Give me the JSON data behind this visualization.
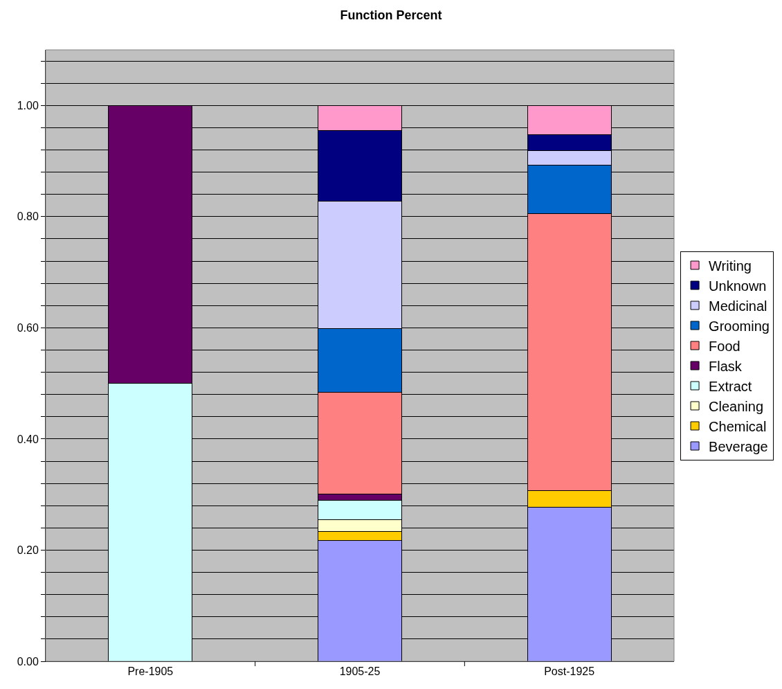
{
  "chart_data": {
    "type": "bar",
    "title": "Function Percent",
    "stacked": true,
    "categories": [
      "Pre-1905",
      "1905-25",
      "Post-1925"
    ],
    "series": [
      {
        "name": "Beverage",
        "color": "#9999ff",
        "values": [
          null,
          0.218,
          0.277
        ]
      },
      {
        "name": "Chemical",
        "color": "#ffcc00",
        "values": [
          null,
          0.015,
          0.03
        ]
      },
      {
        "name": "Cleaning",
        "color": "#ffffcc",
        "values": [
          null,
          0.022,
          null
        ]
      },
      {
        "name": "Extract",
        "color": "#ccffff",
        "values": [
          0.5,
          0.035,
          null
        ]
      },
      {
        "name": "Flask",
        "color": "#660066",
        "values": [
          0.5,
          0.011,
          null
        ]
      },
      {
        "name": "Food",
        "color": "#ff8080",
        "values": [
          null,
          0.183,
          0.499
        ]
      },
      {
        "name": "Grooming",
        "color": "#0066cc",
        "values": [
          null,
          0.114,
          0.086
        ]
      },
      {
        "name": "Medicinal",
        "color": "#ccccff",
        "values": [
          null,
          0.23,
          0.027
        ]
      },
      {
        "name": "Unknown",
        "color": "#000080",
        "values": [
          null,
          0.127,
          0.028
        ]
      },
      {
        "name": "Writing",
        "color": "#ff99cc",
        "values": [
          null,
          0.045,
          0.053
        ]
      }
    ],
    "ylim": [
      0,
      1.1
    ],
    "yticks": [
      {
        "value": 0,
        "label": "0.00"
      },
      {
        "value": 0.04,
        "label": null
      },
      {
        "value": 0.08,
        "label": null
      },
      {
        "value": 0.12,
        "label": null
      },
      {
        "value": 0.16,
        "label": null
      },
      {
        "value": 0.2,
        "label": "0.20"
      },
      {
        "value": 0.24,
        "label": null
      },
      {
        "value": 0.28,
        "label": null
      },
      {
        "value": 0.32,
        "label": null
      },
      {
        "value": 0.36,
        "label": null
      },
      {
        "value": 0.4,
        "label": "0.40"
      },
      {
        "value": 0.44,
        "label": null
      },
      {
        "value": 0.48,
        "label": null
      },
      {
        "value": 0.52,
        "label": null
      },
      {
        "value": 0.56,
        "label": null
      },
      {
        "value": 0.6,
        "label": "0.60"
      },
      {
        "value": 0.64,
        "label": null
      },
      {
        "value": 0.68,
        "label": null
      },
      {
        "value": 0.72,
        "label": null
      },
      {
        "value": 0.76,
        "label": null
      },
      {
        "value": 0.8,
        "label": "0.80"
      },
      {
        "value": 0.84,
        "label": null
      },
      {
        "value": 0.88,
        "label": null
      },
      {
        "value": 0.92,
        "label": null
      },
      {
        "value": 0.96,
        "label": null
      },
      {
        "value": 1,
        "label": "1.00"
      },
      {
        "value": 1.04,
        "label": null
      },
      {
        "value": 1.08,
        "label": null
      }
    ],
    "grid": true,
    "legend": "right"
  }
}
